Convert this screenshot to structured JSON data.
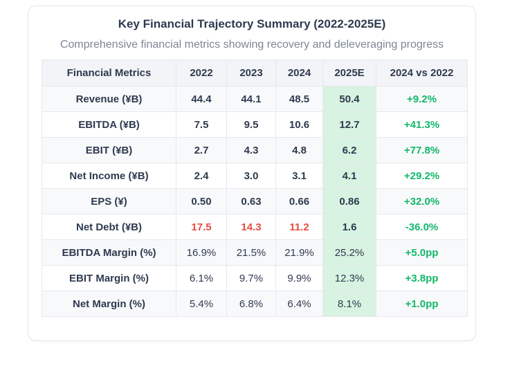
{
  "header": {
    "title": "Key Financial Trajectory Summary (2022-2025E)",
    "subtitle": "Comprehensive financial metrics showing recovery and deleveraging progress"
  },
  "chart_data": {
    "type": "table",
    "title": "Key Financial Trajectory Summary (2022-2025E)",
    "columns": [
      "Financial Metrics",
      "2022",
      "2023",
      "2024",
      "2025E",
      "2024 vs 2022"
    ],
    "forecast_column": "2025E",
    "rows": [
      {
        "metric": "Revenue (¥B)",
        "values": [
          "44.4",
          "44.1",
          "48.5",
          "50.4"
        ],
        "change": "+9.2%",
        "emphasis": true,
        "negative_value_indexes": []
      },
      {
        "metric": "EBITDA (¥B)",
        "values": [
          "7.5",
          "9.5",
          "10.6",
          "12.7"
        ],
        "change": "+41.3%",
        "emphasis": true,
        "negative_value_indexes": []
      },
      {
        "metric": "EBIT (¥B)",
        "values": [
          "2.7",
          "4.3",
          "4.8",
          "6.2"
        ],
        "change": "+77.8%",
        "emphasis": true,
        "negative_value_indexes": []
      },
      {
        "metric": "Net Income (¥B)",
        "values": [
          "2.4",
          "3.0",
          "3.1",
          "4.1"
        ],
        "change": "+29.2%",
        "emphasis": true,
        "negative_value_indexes": []
      },
      {
        "metric": "EPS (¥)",
        "values": [
          "0.50",
          "0.63",
          "0.66",
          "0.86"
        ],
        "change": "+32.0%",
        "emphasis": true,
        "negative_value_indexes": []
      },
      {
        "metric": "Net Debt (¥B)",
        "values": [
          "17.5",
          "14.3",
          "11.2",
          "1.6"
        ],
        "change": "-36.0%",
        "emphasis": true,
        "negative_value_indexes": [
          0,
          1,
          2
        ]
      },
      {
        "metric": "EBITDA Margin (%)",
        "values": [
          "16.9%",
          "21.5%",
          "21.9%",
          "25.2%"
        ],
        "change": "+5.0pp",
        "emphasis": false,
        "negative_value_indexes": []
      },
      {
        "metric": "EBIT Margin (%)",
        "values": [
          "6.1%",
          "9.7%",
          "9.9%",
          "12.3%"
        ],
        "change": "+3.8pp",
        "emphasis": false,
        "negative_value_indexes": []
      },
      {
        "metric": "Net Margin (%)",
        "values": [
          "5.4%",
          "6.8%",
          "6.4%",
          "8.1%"
        ],
        "change": "+1.0pp",
        "emphasis": false,
        "negative_value_indexes": []
      }
    ]
  },
  "colors": {
    "dark_text": "#2e3a4f",
    "subtitle_text": "#7b8794",
    "positive_green": "#12b76a",
    "negative_red": "#e74c3c",
    "forecast_highlight_bg": "#d8f3e1",
    "header_bg": "#f2f4f7",
    "stripe_bg": "#f8f9fb",
    "border": "#e5e8ec"
  }
}
